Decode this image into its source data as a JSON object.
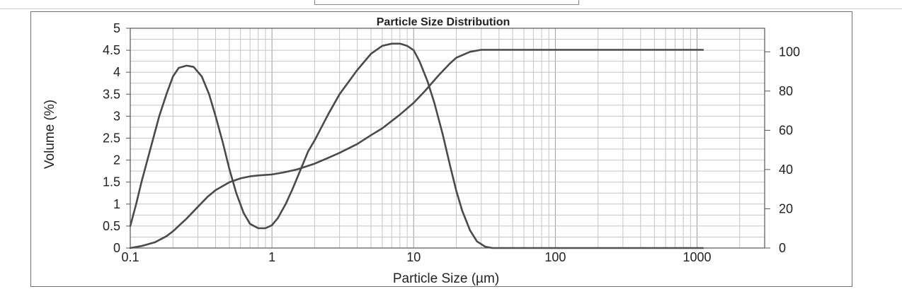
{
  "chart_data": {
    "type": "line",
    "title": "Particle Size Distribution",
    "xlabel": "Particle Size (µm)",
    "ylabel": "Volume (%)",
    "x_scale": "log",
    "xlim": [
      0.1,
      3000
    ],
    "ylim": [
      0,
      5
    ],
    "y2lim": [
      0,
      112
    ],
    "grid": true,
    "x_ticks": [
      {
        "value": 0.1,
        "label": "0.1"
      },
      {
        "value": 1,
        "label": "1"
      },
      {
        "value": 10,
        "label": "10"
      },
      {
        "value": 100,
        "label": "100"
      },
      {
        "value": 1000,
        "label": "1000"
      }
    ],
    "y_ticks": [
      {
        "value": 0,
        "label": "0"
      },
      {
        "value": 0.5,
        "label": "0.5"
      },
      {
        "value": 1,
        "label": "1"
      },
      {
        "value": 1.5,
        "label": "1.5"
      },
      {
        "value": 2,
        "label": "2"
      },
      {
        "value": 2.5,
        "label": "2.5"
      },
      {
        "value": 3,
        "label": "3"
      },
      {
        "value": 3.5,
        "label": "3.5"
      },
      {
        "value": 4,
        "label": "4"
      },
      {
        "value": 4.5,
        "label": "4.5"
      },
      {
        "value": 5,
        "label": "5"
      }
    ],
    "y2_ticks": [
      {
        "value": 0,
        "label": "0"
      },
      {
        "value": 20,
        "label": "20"
      },
      {
        "value": 40,
        "label": "40"
      },
      {
        "value": 60,
        "label": "60"
      },
      {
        "value": 80,
        "label": "80"
      },
      {
        "value": 100,
        "label": "100"
      }
    ],
    "series": [
      {
        "axis": "left",
        "color": "#4a4a4a",
        "x": [
          0.1,
          0.11,
          0.12,
          0.14,
          0.16,
          0.18,
          0.2,
          0.22,
          0.25,
          0.28,
          0.32,
          0.36,
          0.4,
          0.45,
          0.5,
          0.56,
          0.63,
          0.7,
          0.8,
          0.9,
          1.0,
          1.1,
          1.25,
          1.4,
          1.6,
          1.8,
          2.0,
          2.5,
          3.0,
          4.0,
          5.0,
          6.0,
          7.0,
          8.0,
          9.0,
          10.0,
          11.0,
          12.5,
          14.0,
          16.0,
          18.0,
          20.0,
          22.0,
          25.0,
          28.0,
          32.0,
          36.0,
          40.0,
          50.0,
          100.0,
          1000.0,
          1100.0
        ],
        "values": [
          0.5,
          1.0,
          1.5,
          2.3,
          3.0,
          3.5,
          3.9,
          4.1,
          4.15,
          4.12,
          3.9,
          3.5,
          3.0,
          2.4,
          1.8,
          1.25,
          0.8,
          0.55,
          0.45,
          0.45,
          0.52,
          0.68,
          1.0,
          1.35,
          1.8,
          2.2,
          2.45,
          3.05,
          3.5,
          4.05,
          4.42,
          4.6,
          4.65,
          4.65,
          4.6,
          4.5,
          4.25,
          3.8,
          3.3,
          2.6,
          1.9,
          1.3,
          0.85,
          0.4,
          0.15,
          0.03,
          0.0,
          0.0,
          0.0,
          0.0,
          0.0,
          0.0
        ]
      },
      {
        "axis": "right",
        "color": "#4a4a4a",
        "x": [
          0.1,
          0.12,
          0.15,
          0.18,
          0.2,
          0.25,
          0.3,
          0.35,
          0.4,
          0.5,
          0.6,
          0.7,
          0.8,
          1.0,
          1.2,
          1.5,
          2.0,
          2.5,
          3.0,
          4.0,
          5.0,
          6.0,
          8.0,
          10.0,
          12.0,
          15.0,
          18.0,
          20.0,
          25.0,
          30.0,
          50.0,
          100.0,
          1000.0,
          1100.0
        ],
        "values": [
          0.0,
          1.0,
          3.0,
          6.0,
          8.5,
          15.0,
          21.0,
          26.0,
          29.5,
          33.5,
          35.5,
          36.5,
          37.0,
          37.5,
          38.5,
          40.0,
          43.0,
          46.0,
          48.5,
          53.0,
          57.5,
          61.0,
          68.0,
          74.0,
          80.0,
          88.0,
          94.0,
          97.0,
          100.0,
          101.0,
          101.0,
          101.0,
          101.0,
          101.0
        ]
      }
    ]
  }
}
